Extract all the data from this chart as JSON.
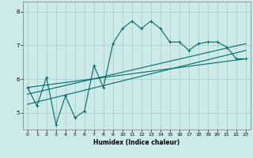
{
  "title": "",
  "xlabel": "Humidex (Indice chaleur)",
  "bg_color": "#cceae8",
  "grid_color": "#aacfcc",
  "line_color": "#006b6b",
  "xlim": [
    -0.5,
    23.5
  ],
  "ylim": [
    4.5,
    8.3
  ],
  "yticks": [
    5,
    6,
    7,
    8
  ],
  "xticks": [
    0,
    1,
    2,
    3,
    4,
    5,
    6,
    7,
    8,
    9,
    10,
    11,
    12,
    13,
    14,
    15,
    16,
    17,
    18,
    19,
    20,
    21,
    22,
    23
  ],
  "series1_x": [
    0,
    1,
    2,
    3,
    4,
    5,
    6,
    7,
    8,
    9,
    10,
    11,
    12,
    13,
    14,
    15,
    16,
    17,
    18,
    19,
    20,
    21,
    22,
    23
  ],
  "series1_y": [
    5.75,
    5.2,
    6.05,
    4.65,
    5.5,
    4.85,
    5.05,
    6.4,
    5.75,
    7.05,
    7.5,
    7.72,
    7.5,
    7.72,
    7.5,
    7.1,
    7.1,
    6.85,
    7.05,
    7.1,
    7.1,
    6.95,
    6.6,
    6.6
  ],
  "series2_x": [
    0,
    23
  ],
  "series2_y": [
    5.25,
    6.85
  ],
  "series3_x": [
    0,
    23
  ],
  "series3_y": [
    5.55,
    7.05
  ],
  "series4_x": [
    0,
    23
  ],
  "series4_y": [
    5.75,
    6.6
  ]
}
